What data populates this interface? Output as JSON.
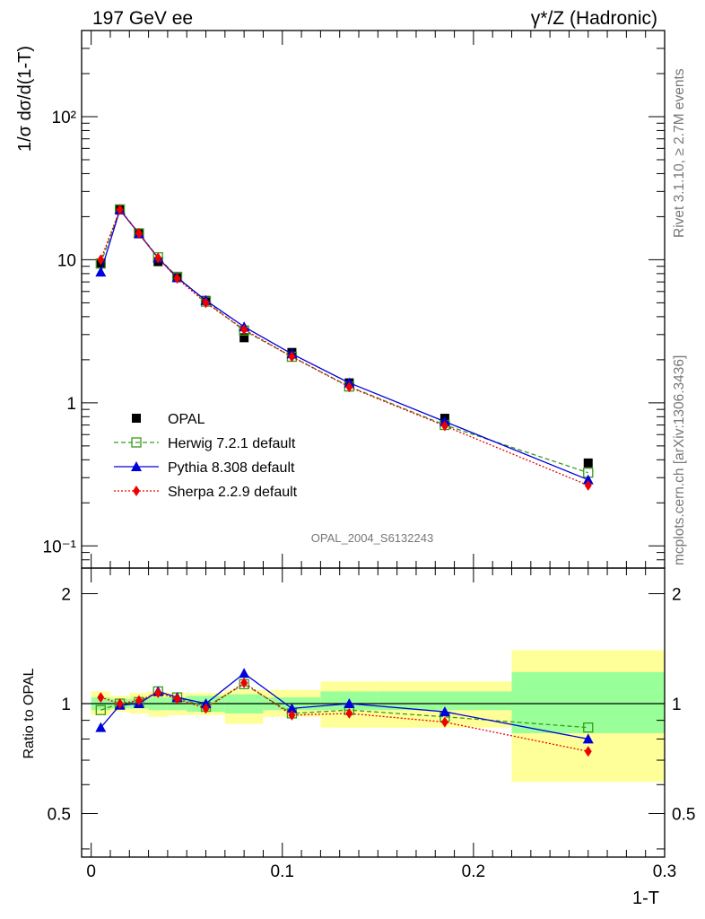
{
  "header": {
    "left": "197 GeV ee",
    "right": "γ*/Z (Hadronic)"
  },
  "side_labels": {
    "rivet": "Rivet 3.1.10, ≥ 2.7M events",
    "mcplots": "mcplots.cern.ch [arXiv:1306.3436]"
  },
  "analysis_id": "OPAL_2004_S6132243",
  "chart_data": [
    {
      "type": "line",
      "panel": "main",
      "ylabel": "1/σ dσ/d(1-T)",
      "xlabel": "",
      "xlim": [
        -0.005,
        0.3
      ],
      "ylim": [
        0.07,
        400
      ],
      "yscale": "log",
      "ytick_labels": [
        "10⁻¹",
        "1",
        "10",
        "10²"
      ],
      "ytick_values": [
        0.1,
        1,
        10,
        100
      ],
      "legend": {
        "position": "bottom-left"
      },
      "x": [
        0.005,
        0.015,
        0.025,
        0.035,
        0.045,
        0.06,
        0.08,
        0.105,
        0.135,
        0.185,
        0.26
      ],
      "series": [
        {
          "name": "OPAL",
          "color": "#000000",
          "marker": "filled-square",
          "line": "none",
          "values": [
            9.5,
            22.5,
            15.2,
            9.7,
            7.5,
            5.2,
            2.85,
            2.25,
            1.38,
            0.78,
            0.38
          ]
        },
        {
          "name": "Herwig 7.2.1 default",
          "color": "#3a9a1a",
          "marker": "open-square",
          "line": "dashed",
          "values": [
            9.4,
            22.5,
            15.3,
            10.4,
            7.6,
            5.1,
            3.2,
            2.1,
            1.3,
            0.7,
            0.325
          ]
        },
        {
          "name": "Pythia 8.308 default",
          "color": "#0000dd",
          "marker": "filled-triangle",
          "line": "solid",
          "values": [
            8.2,
            22.3,
            15.2,
            10.3,
            7.5,
            5.2,
            3.4,
            2.2,
            1.38,
            0.74,
            0.29
          ]
        },
        {
          "name": "Sherpa 2.2.9 default",
          "color": "#ee0000",
          "marker": "filled-diamond",
          "line": "dotted",
          "values": [
            10.0,
            22.4,
            15.3,
            10.3,
            7.4,
            5.0,
            3.25,
            2.1,
            1.29,
            0.69,
            0.265
          ]
        }
      ]
    },
    {
      "type": "line",
      "panel": "ratio",
      "ylabel": "Ratio to OPAL",
      "xlabel": "1-T",
      "xlim": [
        -0.005,
        0.3
      ],
      "ylim": [
        0.38,
        2.35
      ],
      "yscale": "log",
      "ytick_labels": [
        "0.5",
        "1",
        "2"
      ],
      "ytick_values": [
        0.5,
        1,
        2
      ],
      "xtick_labels": [
        "0",
        "0.1",
        "0.2",
        "0.3"
      ],
      "xtick_values": [
        0,
        0.1,
        0.2,
        0.3
      ],
      "bands": {
        "edges": [
          0.0,
          0.01,
          0.02,
          0.03,
          0.04,
          0.05,
          0.07,
          0.09,
          0.12,
          0.15,
          0.22,
          0.3
        ],
        "green_low": [
          0.96,
          0.97,
          0.97,
          0.96,
          0.96,
          0.95,
          0.94,
          0.96,
          0.96,
          0.96,
          0.83
        ],
        "green_high": [
          1.04,
          1.03,
          1.03,
          1.04,
          1.04,
          1.05,
          1.06,
          1.04,
          1.08,
          1.08,
          1.22
        ],
        "yellow_low": [
          0.93,
          0.95,
          0.94,
          0.92,
          0.93,
          0.93,
          0.88,
          0.92,
          0.86,
          0.86,
          0.61
        ],
        "yellow_high": [
          1.08,
          1.05,
          1.07,
          1.08,
          1.07,
          1.07,
          1.09,
          1.09,
          1.15,
          1.15,
          1.4
        ],
        "green_color": "#99ff99",
        "yellow_color": "#ffff99"
      },
      "x": [
        0.005,
        0.015,
        0.025,
        0.035,
        0.045,
        0.06,
        0.08,
        0.105,
        0.135,
        0.185,
        0.26
      ],
      "series": [
        {
          "name": "Herwig 7.2.1 default",
          "color": "#3a9a1a",
          "marker": "open-square",
          "line": "dashed",
          "values": [
            0.96,
            1.0,
            1.01,
            1.08,
            1.04,
            0.98,
            1.13,
            0.94,
            0.96,
            0.92,
            0.86
          ]
        },
        {
          "name": "Pythia 8.308 default",
          "color": "#0000dd",
          "marker": "filled-triangle",
          "line": "solid",
          "values": [
            0.86,
            0.99,
            1.0,
            1.08,
            1.04,
            1.0,
            1.21,
            0.97,
            1.0,
            0.95,
            0.8
          ]
        },
        {
          "name": "Sherpa 2.2.9 default",
          "color": "#ee0000",
          "marker": "filled-diamond",
          "line": "dotted",
          "values": [
            1.04,
            1.0,
            1.02,
            1.07,
            1.03,
            0.97,
            1.14,
            0.93,
            0.94,
            0.89,
            0.74
          ]
        }
      ]
    }
  ]
}
